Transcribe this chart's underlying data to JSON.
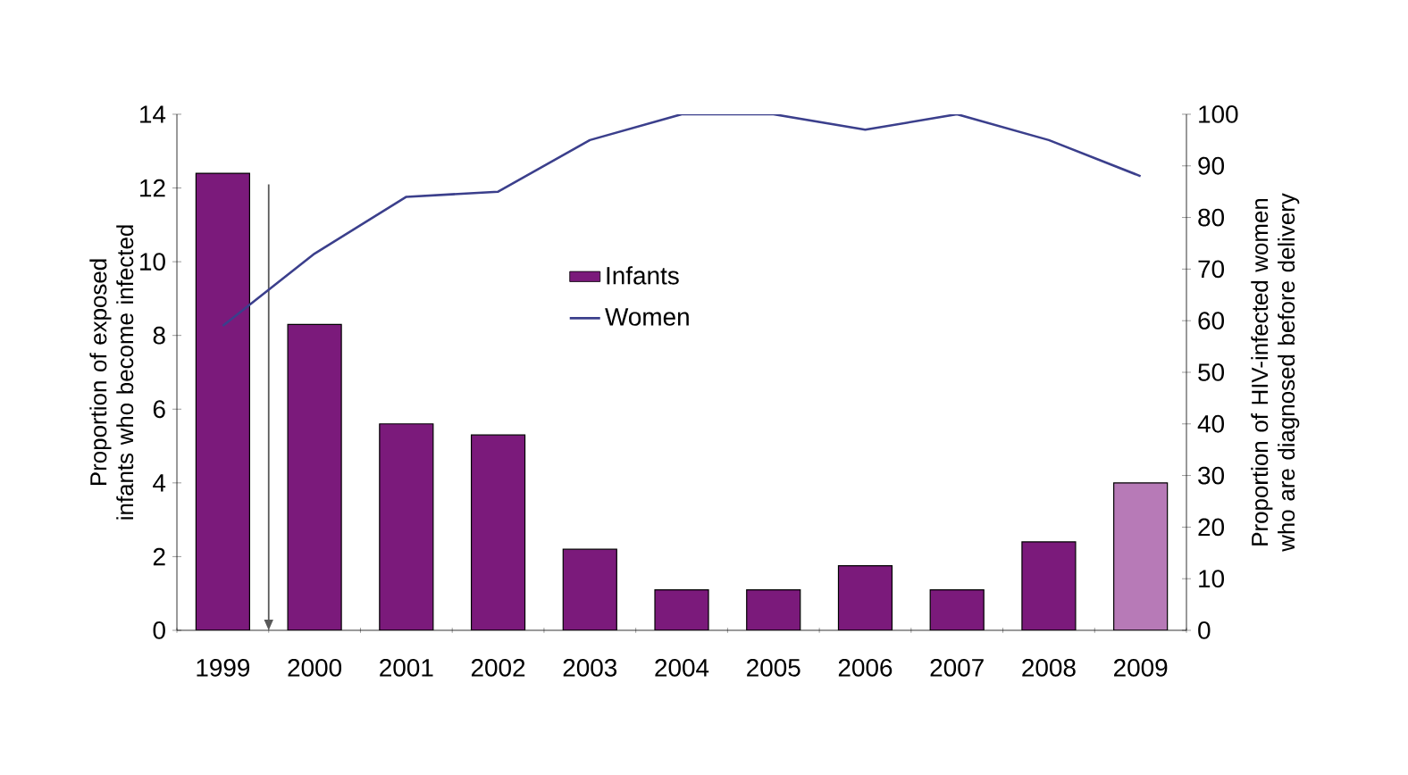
{
  "chart_data": {
    "type": "bar",
    "ylabel": "Proportion of exposed infants who become infected",
    "y2label": "Proportion of HIV-infected women who are diagnosed before delivery",
    "categories": [
      "1999",
      "2000",
      "2001",
      "2002",
      "2003",
      "2004",
      "2005",
      "2006",
      "2007",
      "2008",
      "2009"
    ],
    "series": [
      {
        "name": "Infants",
        "color": "#7b1a7b",
        "colors": [
          "#7b1a7b",
          "#7b1a7b",
          "#7b1a7b",
          "#7b1a7b",
          "#7b1a7b",
          "#7b1a7b",
          "#7b1a7b",
          "#7b1a7b",
          "#7b1a7b",
          "#7b1a7b",
          "#b77ab7"
        ],
        "values": [
          12.4,
          8.3,
          5.6,
          5.3,
          2.2,
          1.1,
          1.1,
          1.75,
          1.1,
          2.4,
          4.0
        ]
      },
      {
        "name": "Women",
        "type": "line",
        "axis": "y2",
        "color": "#3b3f8c",
        "values": [
          59,
          73,
          84,
          85,
          95,
          100,
          100,
          97,
          100,
          95,
          88
        ]
      }
    ],
    "ylim": [
      0,
      14
    ],
    "yticks": [
      0,
      2,
      4,
      6,
      8,
      10,
      12,
      14
    ],
    "y2lim": [
      0,
      100
    ],
    "y2ticks": [
      0,
      10,
      20,
      30,
      40,
      50,
      60,
      70,
      80,
      90,
      100
    ],
    "legend": "top",
    "grid": false
  }
}
